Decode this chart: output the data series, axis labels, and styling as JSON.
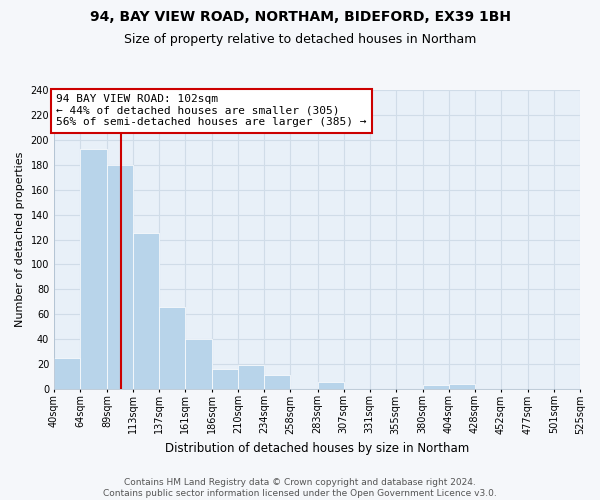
{
  "title": "94, BAY VIEW ROAD, NORTHAM, BIDEFORD, EX39 1BH",
  "subtitle": "Size of property relative to detached houses in Northam",
  "xlabel": "Distribution of detached houses by size in Northam",
  "ylabel": "Number of detached properties",
  "bin_edges": [
    40,
    64,
    89,
    113,
    137,
    161,
    186,
    210,
    234,
    258,
    283,
    307,
    331,
    355,
    380,
    404,
    428,
    452,
    477,
    501,
    525
  ],
  "bin_counts": [
    25,
    193,
    180,
    125,
    66,
    40,
    16,
    19,
    11,
    0,
    5,
    0,
    0,
    0,
    3,
    4,
    0,
    0,
    0,
    0
  ],
  "bar_color": "#b8d4ea",
  "vline_x": 102,
  "vline_color": "#cc0000",
  "annotation_box_text": "94 BAY VIEW ROAD: 102sqm\n← 44% of detached houses are smaller (305)\n56% of semi-detached houses are larger (385) →",
  "annotation_box_color": "#ffffff",
  "annotation_box_edge_color": "#cc0000",
  "ylim": [
    0,
    240
  ],
  "yticks": [
    0,
    20,
    40,
    60,
    80,
    100,
    120,
    140,
    160,
    180,
    200,
    220,
    240
  ],
  "tick_labels": [
    "40sqm",
    "64sqm",
    "89sqm",
    "113sqm",
    "137sqm",
    "161sqm",
    "186sqm",
    "210sqm",
    "234sqm",
    "258sqm",
    "283sqm",
    "307sqm",
    "331sqm",
    "355sqm",
    "380sqm",
    "404sqm",
    "428sqm",
    "452sqm",
    "477sqm",
    "501sqm",
    "525sqm"
  ],
  "grid_color": "#d0dce8",
  "plot_bg_color": "#e8f0f8",
  "fig_bg_color": "#f5f7fa",
  "footnote": "Contains HM Land Registry data © Crown copyright and database right 2024.\nContains public sector information licensed under the Open Government Licence v3.0.",
  "title_fontsize": 10,
  "subtitle_fontsize": 9,
  "xlabel_fontsize": 8.5,
  "ylabel_fontsize": 8,
  "tick_fontsize": 7,
  "annot_fontsize": 8,
  "footnote_fontsize": 6.5
}
